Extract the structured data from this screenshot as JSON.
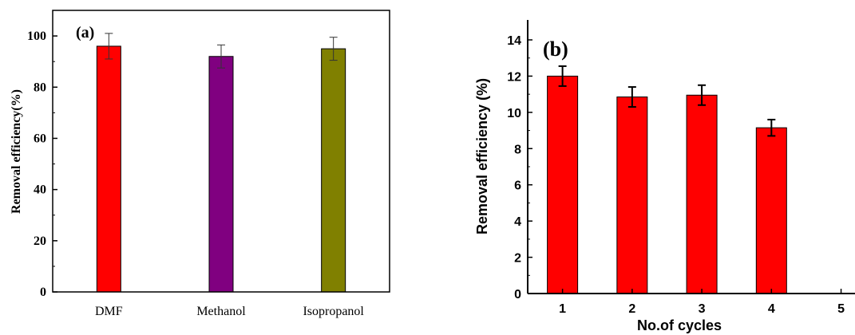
{
  "chart_data": [
    {
      "type": "bar",
      "panel_label": "(a)",
      "categories": [
        "DMF",
        "Methanol",
        "Isopropanol"
      ],
      "values": [
        96,
        92,
        95
      ],
      "errors": [
        5,
        4.5,
        4.5
      ],
      "bar_colors": [
        "#ff0000",
        "#800080",
        "#808000"
      ],
      "ylabel": "Removal efficiency(%)",
      "xlabel": "",
      "ylim": [
        0,
        110
      ],
      "yticks": [
        0,
        20,
        40,
        60,
        80,
        100
      ],
      "ytick_labels": [
        "0",
        "20",
        "40",
        "60",
        "80",
        "100"
      ]
    },
    {
      "type": "bar",
      "panel_label": "(b)",
      "categories": [
        1,
        2,
        3,
        4
      ],
      "values": [
        12.0,
        10.85,
        10.95,
        9.15
      ],
      "errors": [
        0.55,
        0.55,
        0.55,
        0.45
      ],
      "bar_color": "#ff0000",
      "xlabel": "No.of cycles",
      "ylabel": "Removal efficiency (%)",
      "xlim": [
        0.5,
        5.2
      ],
      "xticks": [
        1,
        2,
        3,
        4,
        5
      ],
      "xtick_labels": [
        "1",
        "2",
        "3",
        "4",
        "5"
      ],
      "ylim": [
        0,
        14.5
      ],
      "yticks": [
        0,
        2,
        4,
        6,
        8,
        10,
        12,
        14
      ],
      "ytick_labels": [
        "0",
        "2",
        "4",
        "6",
        "8",
        "10",
        "12",
        "14"
      ]
    }
  ]
}
